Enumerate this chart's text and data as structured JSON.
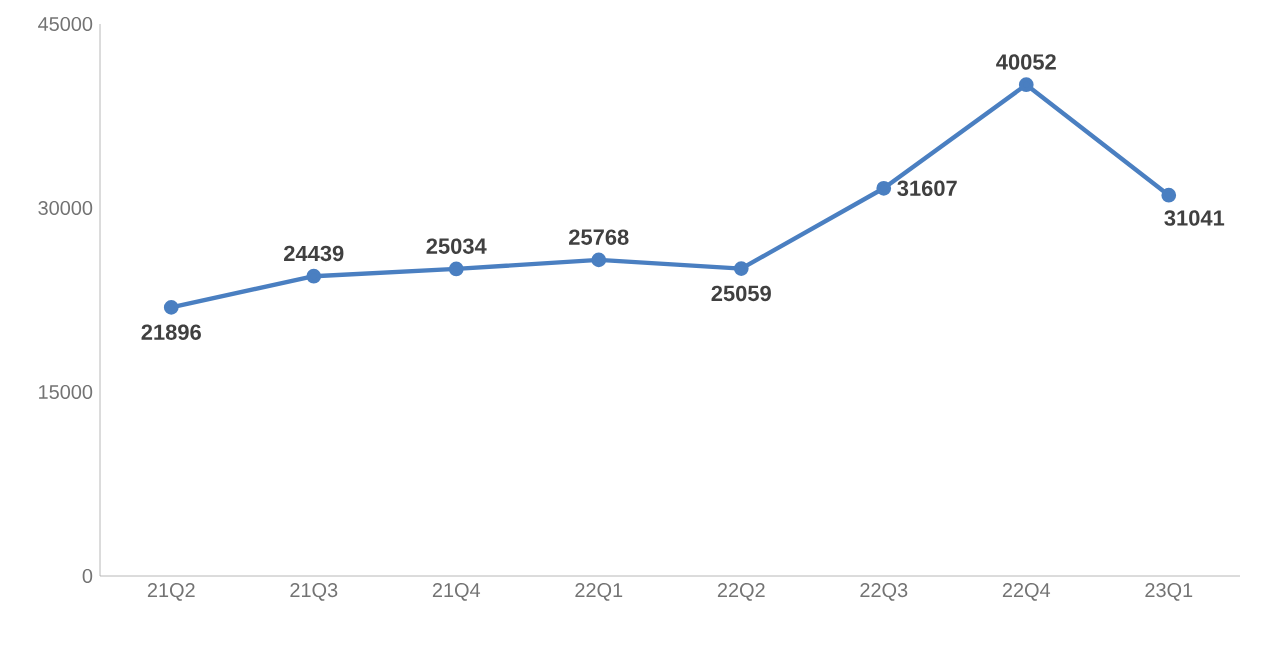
{
  "chart_data": {
    "type": "line",
    "categories": [
      "21Q2",
      "21Q3",
      "21Q4",
      "22Q1",
      "22Q2",
      "22Q3",
      "22Q4",
      "23Q1"
    ],
    "series": [
      {
        "color": "#4a7fc1",
        "values": [
          21896,
          24439,
          25034,
          25768,
          25059,
          31607,
          40052,
          31041
        ]
      }
    ],
    "ylim": [
      0,
      45000
    ],
    "yticks": [
      0,
      15000,
      30000,
      45000
    ],
    "grid": false,
    "marker": "circle",
    "line_style": "solid",
    "data_labels": true
  }
}
